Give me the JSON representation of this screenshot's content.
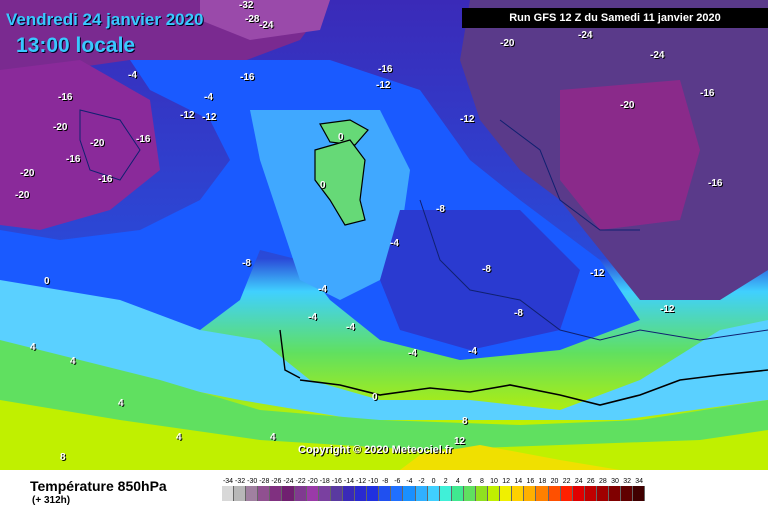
{
  "header": {
    "date": "Vendredi 24 janvier 2020",
    "local_time": "13:00 locale",
    "run": "Run GFS 12 Z du Samedi 11 janvier 2020"
  },
  "footer": {
    "title": "Température 850hPa",
    "lead": "(+ 312h)",
    "copyright": "Copyright © 2020 Meteociel.fr"
  },
  "isotherm_labels": [
    "-32",
    "-28",
    "-24",
    "-24",
    "-24",
    "-20",
    "-20",
    "-20",
    "-20",
    "-20",
    "-20",
    "-16",
    "-16",
    "-16",
    "-16",
    "-16",
    "-16",
    "-16",
    "-16",
    "-12",
    "-12",
    "-12",
    "-12",
    "-12",
    "-12",
    "-8",
    "-8",
    "-8",
    "-8",
    "-4",
    "-4",
    "-4",
    "-4",
    "-4",
    "-4",
    "-4",
    "-4",
    "0",
    "0",
    "0",
    "0",
    "4",
    "4",
    "4",
    "4",
    "4",
    "8",
    "8",
    "12"
  ],
  "legend": {
    "values": [
      "-34",
      "-32",
      "-30",
      "-28",
      "-26",
      "-24",
      "-22",
      "-20",
      "-18",
      "-16",
      "-14",
      "-12",
      "-10",
      "-8",
      "-6",
      "-4",
      "-2",
      "0",
      "2",
      "4",
      "6",
      "8",
      "10",
      "12",
      "14",
      "16",
      "18",
      "20",
      "22",
      "24",
      "26",
      "28",
      "30",
      "32",
      "34"
    ],
    "colors": [
      "#d8d8d8",
      "#b8b8b8",
      "#a080a0",
      "#905090",
      "#803080",
      "#702070",
      "#803a90",
      "#9a3aa8",
      "#7a40a0",
      "#5a3aa0",
      "#3a2ab8",
      "#2a2ad0",
      "#2030e0",
      "#2050f0",
      "#2070ff",
      "#1a90ff",
      "#30b0ff",
      "#40d0ff",
      "#40f0d8",
      "#40e890",
      "#60e060",
      "#90e020",
      "#c0f000",
      "#f0f000",
      "#ffd000",
      "#ffb000",
      "#ff8000",
      "#ff5000",
      "#ff2000",
      "#e00000",
      "#c00000",
      "#a00000",
      "#800000",
      "#600000",
      "#400000"
    ]
  }
}
